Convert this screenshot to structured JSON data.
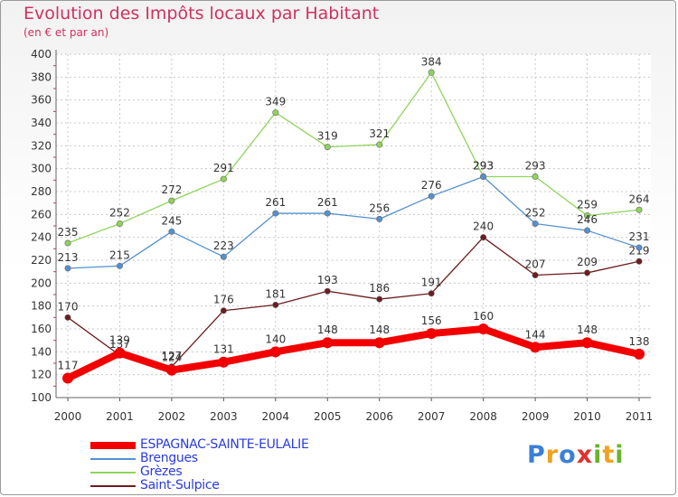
{
  "title": "Evolution des Impôts locaux par Habitant",
  "subtitle": "(en € et par an)",
  "logo": {
    "letters": [
      "P",
      "r",
      "o",
      "x",
      "i",
      "t",
      "i"
    ],
    "colors": [
      "#3b7fd6",
      "#f0a21e",
      "#3b7fd6",
      "#e2302d",
      "#6ab32e",
      "#f0a21e",
      "#6ab32e"
    ]
  },
  "chart_data": {
    "type": "line",
    "title": "Evolution des Impôts locaux par Habitant",
    "subtitle": "(en € et par an)",
    "xlabel": "",
    "ylabel": "",
    "categories": [
      "2000",
      "2001",
      "2002",
      "2003",
      "2004",
      "2005",
      "2006",
      "2007",
      "2008",
      "2009",
      "2010",
      "2011"
    ],
    "ylim": [
      100,
      400
    ],
    "yticks": [
      "100",
      "120",
      "140",
      "160",
      "180",
      "200",
      "220",
      "240",
      "260",
      "280",
      "300",
      "320",
      "340",
      "360",
      "380",
      "400"
    ],
    "grid": true,
    "legend_position": "bottom-left",
    "series": [
      {
        "name": "Saint-Sulpice",
        "color": "#6b1c1f",
        "values": [
          170,
          137,
          127,
          176,
          181,
          193,
          186,
          191,
          240,
          207,
          209,
          219
        ],
        "labels": [
          "170",
          "137",
          "127",
          "176",
          "181",
          "193",
          "186",
          "191",
          "240",
          "207",
          "209",
          "219"
        ]
      },
      {
        "name": "Grèzes",
        "color": "#8fd45c",
        "values": [
          235,
          252,
          272,
          291,
          349,
          319,
          321,
          384,
          293,
          293,
          259,
          264
        ],
        "labels": [
          "235",
          "252",
          "272",
          "291",
          "349",
          "319",
          "321",
          "384",
          "293",
          "293",
          "259",
          "264"
        ]
      },
      {
        "name": "Brengues",
        "color": "#5490cf",
        "values": [
          213,
          215,
          245,
          223,
          261,
          261,
          256,
          276,
          293,
          252,
          246,
          231
        ],
        "labels": [
          "213",
          "215",
          "245",
          "223",
          "261",
          "261",
          "256",
          "276",
          "293",
          "252",
          "246",
          "231"
        ]
      },
      {
        "name": "ESPAGNAC-SAINTE-EULALIE",
        "color": "#f20000",
        "values": [
          117,
          139,
          124,
          131,
          140,
          148,
          148,
          156,
          160,
          144,
          148,
          138
        ],
        "labels": [
          "117",
          "139",
          "124",
          "131",
          "140",
          "148",
          "148",
          "156",
          "160",
          "144",
          "148",
          "138"
        ]
      }
    ],
    "legend": [
      "ESPAGNAC-SAINTE-EULALIE",
      "Brengues",
      "Grèzes",
      "Saint-Sulpice"
    ]
  }
}
